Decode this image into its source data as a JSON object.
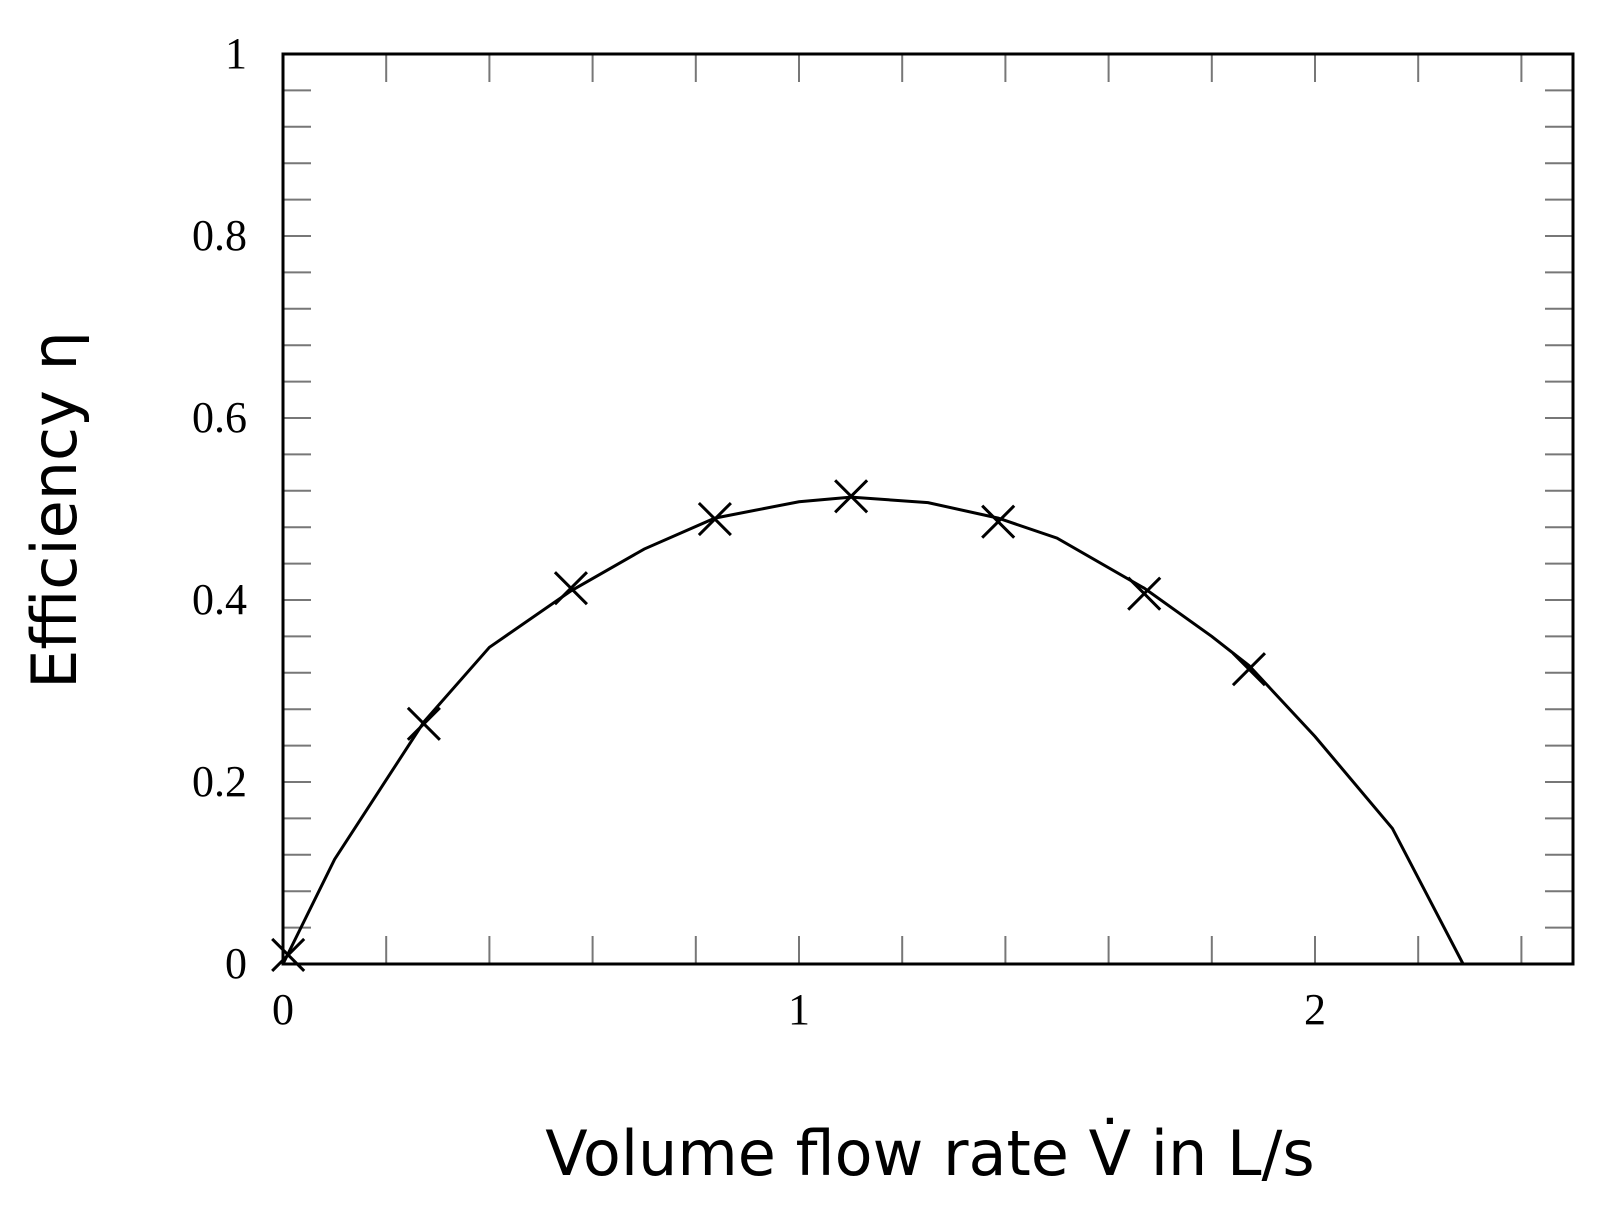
{
  "chart_data": {
    "type": "scatter",
    "xlabel": "Volume flow rate V̇ in L/s",
    "ylabel": "Efficiency η",
    "xlim": [
      0,
      2.5
    ],
    "ylim": [
      0,
      1
    ],
    "xticks": [
      0,
      1,
      2
    ],
    "yticks": [
      0,
      0.2,
      0.4,
      0.6,
      0.8,
      1
    ],
    "x_minor_ticks": [
      0.2,
      0.4,
      0.6,
      0.8,
      1.2,
      1.4,
      1.6,
      1.8,
      2.2,
      2.4
    ],
    "y_minor_ticks": [
      0.04,
      0.08,
      0.12,
      0.16,
      0.24,
      0.28,
      0.32,
      0.36,
      0.44,
      0.48,
      0.52,
      0.56,
      0.64,
      0.68,
      0.72,
      0.76,
      0.84,
      0.88,
      0.92,
      0.96
    ],
    "series": [
      {
        "type": "scatter",
        "color": "#000000",
        "x": [
          0.01,
          0.273,
          0.558,
          0.837,
          1.101,
          1.386,
          1.669,
          1.872
        ],
        "values": [
          0.01,
          0.264,
          0.413,
          0.489,
          0.514,
          0.486,
          0.407,
          0.324
        ]
      },
      {
        "type": "line",
        "color": "#000000",
        "x": [
          0,
          0.1,
          0.273,
          0.4,
          0.558,
          0.7,
          0.837,
          1.0,
          1.101,
          1.25,
          1.386,
          1.5,
          1.669,
          1.8,
          1.872,
          2.0,
          2.15,
          2.287
        ],
        "values": [
          0,
          0.115,
          0.266,
          0.348,
          0.41,
          0.456,
          0.49,
          0.508,
          0.513,
          0.507,
          0.49,
          0.468,
          0.413,
          0.36,
          0.328,
          0.25,
          0.149,
          0
        ]
      }
    ]
  }
}
